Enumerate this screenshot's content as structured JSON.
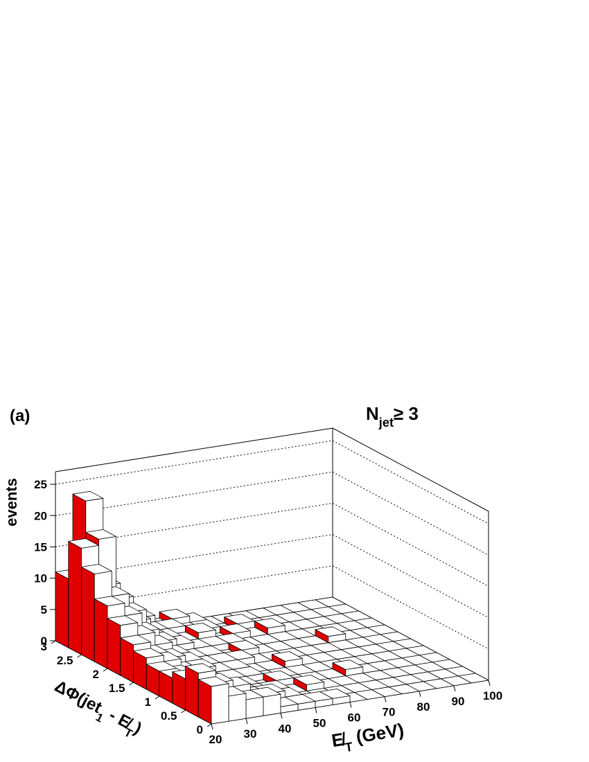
{
  "chart_data": {
    "type": "lego",
    "panel_label": "(a)",
    "annotation": [
      {
        "text": "N"
      },
      {
        "text": "jet",
        "sub": true
      },
      {
        "text": "≥ 3"
      }
    ],
    "xlabel": [
      {
        "text": "E̸"
      },
      {
        "text": "T",
        "sub": true
      },
      {
        "text": " (GeV)"
      }
    ],
    "ylabel": [
      {
        "text": "ΔΦ(jet"
      },
      {
        "text": "1",
        "sub": true
      },
      {
        "text": " - E̸"
      },
      {
        "text": "T",
        "sub": true
      },
      {
        "text": ")"
      }
    ],
    "zlabel": "events",
    "xlim": [
      20,
      100
    ],
    "ylim": [
      0,
      3
    ],
    "zlim": [
      0,
      27
    ],
    "xticks": [
      20,
      30,
      40,
      50,
      60,
      70,
      80,
      90,
      100
    ],
    "yticks": [
      0,
      0.5,
      1,
      1.5,
      2,
      2.5,
      3
    ],
    "zticks": [
      0,
      5,
      10,
      15,
      20,
      25
    ],
    "xbins": [
      20,
      25,
      30,
      35,
      40,
      45,
      50,
      55,
      60,
      65,
      70,
      75,
      80,
      85,
      90,
      95,
      100
    ],
    "ybins": [
      0,
      0.25,
      0.5,
      0.75,
      1,
      1.25,
      1.5,
      1.75,
      2,
      2.25,
      2.5,
      2.75,
      3
    ],
    "top_color": "#ffffff",
    "front_color": "#ffffff",
    "side_color": "#e00000",
    "values": [
      [
        6,
        4,
        3,
        3,
        1,
        1,
        1,
        1,
        0,
        0,
        0,
        0,
        0,
        0,
        0,
        0
      ],
      [
        7,
        5,
        4,
        2,
        2,
        1,
        0,
        0,
        0,
        0,
        0,
        0,
        0,
        0,
        0,
        0
      ],
      [
        5,
        3,
        2,
        2,
        1,
        1,
        0,
        1,
        0,
        0,
        0,
        0,
        0,
        0,
        0,
        0
      ],
      [
        4,
        2,
        2,
        1,
        1,
        0,
        1,
        0,
        0,
        0,
        1,
        0,
        0,
        0,
        0,
        0
      ],
      [
        4,
        3,
        2,
        1,
        1,
        1,
        0,
        0,
        0,
        0,
        0,
        0,
        0,
        0,
        0,
        0
      ],
      [
        5,
        4,
        2,
        2,
        1,
        1,
        0,
        0,
        1,
        0,
        0,
        0,
        0,
        0,
        0,
        0
      ],
      [
        6,
        4,
        3,
        2,
        1,
        1,
        1,
        0,
        0,
        0,
        0,
        0,
        0,
        0,
        0,
        0
      ],
      [
        8,
        6,
        4,
        2,
        1,
        1,
        0,
        1,
        0,
        0,
        0,
        0,
        1,
        0,
        0,
        0
      ],
      [
        10,
        8,
        5,
        3,
        2,
        1,
        1,
        1,
        0,
        0,
        0,
        0,
        0,
        0,
        0,
        0
      ],
      [
        14,
        10,
        7,
        3,
        2,
        1,
        2,
        0,
        1,
        0,
        1,
        0,
        0,
        0,
        0,
        0
      ],
      [
        17,
        18,
        8,
        4,
        2,
        2,
        1,
        1,
        0,
        1,
        0,
        0,
        0,
        0,
        0,
        0
      ],
      [
        11,
        23,
        9,
        5,
        3,
        1,
        2,
        1,
        0,
        0,
        0,
        0,
        0,
        0,
        0,
        0
      ]
    ]
  }
}
